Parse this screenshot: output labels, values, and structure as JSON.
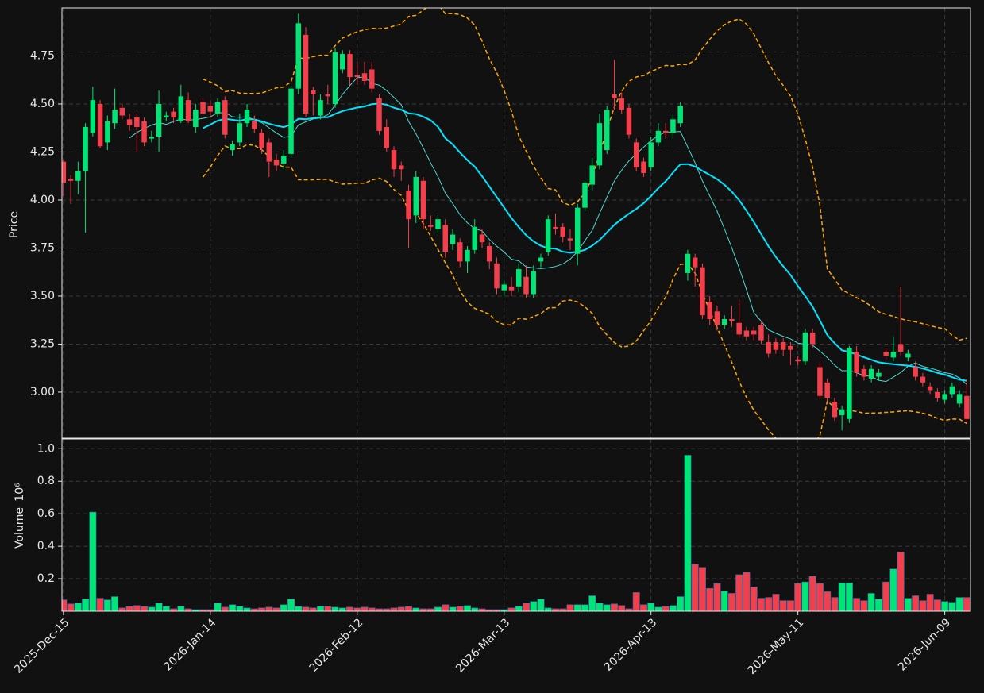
{
  "chart_data": {
    "type": "candlestick",
    "ylabel": "Price",
    "grid": true,
    "up_color": "#00e676",
    "down_color": "#f23f4b",
    "xlim": [
      -0.2,
      123.5
    ],
    "xticks": [
      {
        "value": 0,
        "label": "2025-Dec-15"
      },
      {
        "value": 20,
        "label": "2026-Jan-14"
      },
      {
        "value": 40,
        "label": "2026-Feb-12"
      },
      {
        "value": 60,
        "label": "2026-Mar-13"
      },
      {
        "value": 80,
        "label": "2026-Apr-13"
      },
      {
        "value": 100,
        "label": "2026-May-11"
      },
      {
        "value": 120,
        "label": "2026-Jun-09"
      }
    ],
    "ylim": [
      2.76,
      5.0
    ],
    "yticks": [
      {
        "value": 3.0,
        "label": "3.00"
      },
      {
        "value": 3.25,
        "label": "3.25"
      },
      {
        "value": 3.5,
        "label": "3.50"
      },
      {
        "value": 3.75,
        "label": "3.75"
      },
      {
        "value": 4.0,
        "label": "4.00"
      },
      {
        "value": 4.25,
        "label": "4.25"
      },
      {
        "value": 4.5,
        "label": "4.50"
      },
      {
        "value": 4.75,
        "label": "4.75"
      }
    ],
    "moving_averages": [
      {
        "period": 10,
        "color": "#4fd8cf",
        "width": 1
      },
      {
        "period": 20,
        "color": "#00e5ff",
        "width": 2
      }
    ],
    "bollinger": {
      "period": 20,
      "std": 2,
      "color": "#ffa500"
    },
    "open": [
      4.2,
      4.11,
      4.1,
      4.15,
      4.35,
      4.5,
      4.3,
      4.4,
      4.48,
      4.42,
      4.43,
      4.41,
      4.32,
      4.33,
      4.43,
      4.46,
      4.41,
      4.52,
      4.38,
      4.51,
      4.49,
      4.45,
      4.52,
      4.26,
      4.3,
      4.4,
      4.41,
      4.35,
      4.3,
      4.21,
      4.19,
      4.24,
      4.58,
      4.86,
      4.57,
      4.44,
      4.55,
      4.5,
      4.68,
      4.76,
      4.65,
      4.66,
      4.68,
      4.53,
      4.38,
      4.26,
      4.18,
      4.05,
      3.92,
      4.1,
      3.87,
      3.85,
      3.87,
      3.77,
      3.78,
      3.68,
      3.74,
      3.82,
      3.76,
      3.67,
      3.53,
      3.55,
      3.55,
      3.6,
      3.51,
      3.68,
      3.73,
      3.86,
      3.86,
      3.8,
      3.72,
      3.96,
      4.08,
      4.18,
      4.26,
      4.55,
      4.53,
      4.48,
      4.3,
      4.2,
      4.17,
      4.3,
      4.36,
      4.35,
      4.4,
      3.62,
      3.7,
      3.65,
      3.47,
      3.42,
      3.35,
      3.38,
      3.36,
      3.32,
      3.32,
      3.35,
      3.26,
      3.26,
      3.26,
      3.24,
      3.17,
      3.16,
      3.31,
      3.13,
      3.05,
      2.95,
      2.88,
      2.86,
      3.21,
      3.12,
      3.07,
      3.08,
      3.21,
      3.18,
      3.25,
      3.18,
      3.13,
      3.08,
      3.03,
      3.0,
      2.96,
      2.99,
      2.94,
      2.98
    ],
    "high": [
      4.21,
      4.13,
      4.2,
      4.4,
      4.59,
      4.52,
      4.44,
      4.58,
      4.5,
      4.45,
      4.45,
      4.43,
      4.36,
      4.57,
      4.46,
      4.48,
      4.6,
      4.56,
      4.5,
      4.53,
      4.52,
      4.53,
      4.54,
      4.31,
      4.45,
      4.5,
      4.44,
      4.37,
      4.32,
      4.24,
      4.26,
      4.6,
      4.97,
      4.9,
      4.59,
      4.55,
      4.6,
      4.79,
      4.78,
      4.78,
      4.72,
      4.72,
      4.72,
      4.55,
      4.42,
      4.28,
      4.2,
      4.08,
      4.15,
      4.12,
      3.92,
      3.92,
      3.9,
      3.85,
      3.8,
      3.76,
      3.9,
      3.85,
      3.78,
      3.7,
      3.58,
      3.6,
      3.67,
      3.66,
      3.66,
      3.72,
      3.92,
      3.93,
      3.88,
      3.85,
      3.98,
      4.1,
      4.22,
      4.45,
      4.49,
      4.73,
      4.56,
      4.5,
      4.32,
      4.22,
      4.33,
      4.4,
      4.4,
      4.45,
      4.51,
      3.74,
      3.72,
      3.67,
      3.5,
      3.45,
      3.4,
      3.45,
      3.48,
      3.34,
      3.34,
      3.37,
      3.3,
      3.28,
      3.28,
      3.26,
      3.19,
      3.33,
      3.33,
      3.16,
      3.07,
      2.97,
      2.93,
      3.24,
      3.24,
      3.14,
      3.14,
      3.12,
      3.23,
      3.29,
      3.55,
      3.22,
      3.16,
      3.1,
      3.05,
      3.02,
      3.01,
      3.05,
      3.01,
      3.07
    ],
    "low": [
      4.02,
      3.98,
      4.03,
      3.83,
      4.33,
      4.27,
      4.26,
      4.37,
      4.42,
      4.36,
      4.25,
      4.28,
      4.3,
      4.25,
      4.41,
      4.4,
      4.4,
      4.4,
      4.35,
      4.44,
      4.43,
      4.43,
      4.32,
      4.23,
      4.28,
      4.38,
      4.35,
      4.24,
      4.12,
      4.15,
      4.16,
      4.22,
      4.55,
      4.43,
      4.44,
      4.42,
      4.5,
      4.48,
      4.66,
      4.6,
      4.6,
      4.6,
      4.56,
      4.34,
      4.25,
      4.12,
      4.1,
      3.75,
      3.88,
      3.85,
      3.84,
      3.83,
      3.7,
      3.74,
      3.65,
      3.62,
      3.72,
      3.75,
      3.64,
      3.51,
      3.5,
      3.5,
      3.52,
      3.49,
      3.49,
      3.65,
      3.71,
      3.82,
      3.78,
      3.74,
      3.66,
      3.94,
      4.05,
      4.16,
      4.24,
      4.47,
      4.45,
      4.32,
      4.15,
      4.12,
      4.15,
      4.28,
      4.32,
      4.32,
      4.38,
      3.58,
      3.55,
      3.38,
      3.35,
      3.32,
      3.33,
      3.34,
      3.28,
      3.27,
      3.27,
      3.25,
      3.18,
      3.2,
      3.19,
      3.14,
      3.14,
      3.14,
      3.23,
      2.96,
      2.95,
      2.85,
      2.8,
      2.84,
      3.08,
      3.06,
      3.05,
      3.06,
      3.17,
      3.16,
      3.19,
      3.16,
      3.06,
      3.03,
      2.99,
      2.95,
      2.94,
      2.97,
      2.92,
      2.84
    ],
    "close": [
      4.09,
      4.1,
      4.15,
      4.38,
      4.52,
      4.28,
      4.41,
      4.47,
      4.44,
      4.39,
      4.38,
      4.3,
      4.33,
      4.5,
      4.44,
      4.43,
      4.54,
      4.41,
      4.47,
      4.45,
      4.46,
      4.51,
      4.34,
      4.29,
      4.4,
      4.47,
      4.37,
      4.27,
      4.2,
      4.18,
      4.23,
      4.58,
      4.92,
      4.45,
      4.55,
      4.52,
      4.54,
      4.77,
      4.76,
      4.64,
      4.64,
      4.62,
      4.58,
      4.36,
      4.27,
      4.16,
      4.16,
      3.9,
      4.12,
      3.9,
      3.86,
      3.9,
      3.73,
      3.82,
      3.68,
      3.74,
      3.86,
      3.78,
      3.68,
      3.54,
      3.56,
      3.53,
      3.64,
      3.51,
      3.63,
      3.7,
      3.9,
      3.85,
      3.81,
      3.79,
      3.96,
      4.09,
      4.18,
      4.4,
      4.47,
      4.53,
      4.47,
      4.34,
      4.17,
      4.14,
      4.3,
      4.36,
      4.35,
      4.42,
      4.49,
      3.72,
      3.65,
      3.4,
      3.38,
      3.35,
      3.38,
      3.37,
      3.3,
      3.29,
      3.3,
      3.27,
      3.2,
      3.22,
      3.22,
      3.22,
      3.16,
      3.31,
      3.25,
      2.98,
      2.97,
      2.87,
      2.91,
      3.23,
      3.1,
      3.08,
      3.12,
      3.1,
      3.19,
      3.21,
      3.21,
      3.2,
      3.08,
      3.05,
      3.01,
      2.97,
      2.99,
      3.03,
      2.99,
      2.86
    ],
    "volume": {
      "ylabel": "Volume",
      "offset_label": "10⁶",
      "ylim": [
        0,
        1.06
      ],
      "yticks": [
        0.2,
        0.4,
        0.6,
        0.8,
        {
          "value": 1.0,
          "label": "1.0"
        }
      ],
      "values": [
        0.07,
        0.045,
        0.05,
        0.075,
        0.61,
        0.08,
        0.07,
        0.09,
        0.02,
        0.03,
        0.035,
        0.03,
        0.025,
        0.05,
        0.03,
        0.015,
        0.03,
        0.015,
        0.01,
        0.01,
        0.01,
        0.05,
        0.025,
        0.04,
        0.03,
        0.02,
        0.015,
        0.02,
        0.025,
        0.02,
        0.04,
        0.075,
        0.03,
        0.025,
        0.02,
        0.03,
        0.03,
        0.025,
        0.02,
        0.025,
        0.02,
        0.025,
        0.02,
        0.015,
        0.015,
        0.02,
        0.025,
        0.03,
        0.02,
        0.015,
        0.015,
        0.025,
        0.04,
        0.025,
        0.03,
        0.035,
        0.02,
        0.015,
        0.01,
        0.01,
        0.01,
        0.02,
        0.03,
        0.05,
        0.06,
        0.075,
        0.02,
        0.015,
        0.015,
        0.04,
        0.04,
        0.04,
        0.095,
        0.05,
        0.04,
        0.045,
        0.035,
        0.015,
        0.115,
        0.04,
        0.05,
        0.025,
        0.03,
        0.035,
        0.09,
        0.96,
        0.29,
        0.27,
        0.14,
        0.17,
        0.125,
        0.11,
        0.225,
        0.24,
        0.15,
        0.08,
        0.085,
        0.105,
        0.065,
        0.065,
        0.17,
        0.18,
        0.215,
        0.17,
        0.12,
        0.085,
        0.175,
        0.175,
        0.08,
        0.065,
        0.11,
        0.075,
        0.18,
        0.26,
        0.365,
        0.08,
        0.095,
        0.065,
        0.105,
        0.07,
        0.06,
        0.055,
        0.085,
        0.085
      ]
    }
  }
}
